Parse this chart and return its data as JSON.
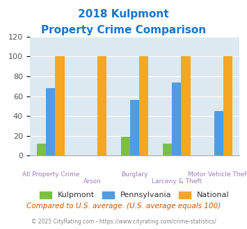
{
  "title_line1": "2018 Kulpmont",
  "title_line2": "Property Crime Comparison",
  "title_color": "#1874CD",
  "categories": [
    "All Property Crime",
    "Arson",
    "Burglary",
    "Larceny & Theft",
    "Motor Vehicle Theft"
  ],
  "kulpmont": [
    12,
    0,
    19,
    12,
    0
  ],
  "pennsylvania": [
    68,
    0,
    56,
    74,
    45
  ],
  "national": [
    100,
    100,
    100,
    100,
    100
  ],
  "kulpmont_color": "#7ac143",
  "pennsylvania_color": "#4f9de0",
  "national_color": "#f5a623",
  "background_color": "#dce9f0",
  "plot_bg_color": "#dce9f0",
  "ylim": [
    0,
    120
  ],
  "yticks": [
    0,
    20,
    40,
    60,
    80,
    100,
    120
  ],
  "xlabel_color": "#9e7bba",
  "footer_text": "Compared to U.S. average. (U.S. average equals 100)",
  "footer_color": "#cc5500",
  "copyright_text": "© 2025 CityRating.com - https://www.cityrating.com/crime-statistics/",
  "copyright_color": "#888888",
  "legend_labels": [
    "Kulpmont",
    "Pennsylvania",
    "National"
  ],
  "bar_width": 0.22,
  "group_positions": [
    0,
    1,
    2,
    3,
    4
  ]
}
